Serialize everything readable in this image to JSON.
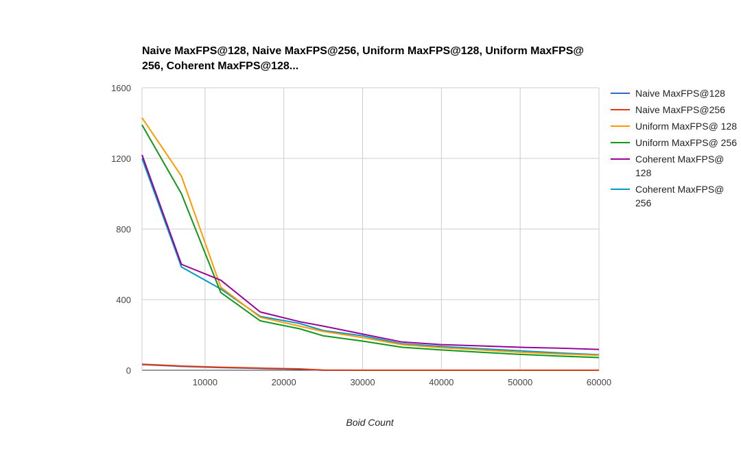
{
  "chart_data": {
    "type": "line",
    "title": "Naive MaxFPS@128, Naive MaxFPS@256, Uniform MaxFPS@128, Uniform MaxFPS@ 256, Coherent MaxFPS@128...",
    "xlabel": "Boid Count",
    "ylabel": "",
    "xlim": [
      2000,
      60000
    ],
    "ylim": [
      0,
      1600
    ],
    "x_ticks": [
      10000,
      20000,
      30000,
      40000,
      50000,
      60000
    ],
    "y_ticks": [
      0,
      400,
      800,
      1200,
      1600
    ],
    "x_tick_labels": [
      "10000",
      "20000",
      "30000",
      "40000",
      "50000",
      "60000"
    ],
    "y_tick_labels": [
      "0",
      "400",
      "800",
      "1200",
      "1600"
    ],
    "grid": true,
    "legend_position": "right",
    "x": [
      2000,
      7000,
      12000,
      17000,
      22000,
      25000,
      30000,
      35000,
      40000,
      45000,
      50000,
      55000,
      60000
    ],
    "series": [
      {
        "name": "Naive MaxFPS@128",
        "color": "#3366cc",
        "values": [
          32,
          22,
          15,
          10,
          6,
          0,
          0,
          0,
          0,
          0,
          0,
          0,
          0
        ]
      },
      {
        "name": "Naive MaxFPS@256",
        "color": "#dc3912",
        "values": [
          34,
          24,
          17,
          12,
          8,
          1,
          0,
          0,
          0,
          0,
          0,
          0,
          0
        ]
      },
      {
        "name": "Uniform MaxFPS@ 128",
        "color": "#ff9900",
        "values": [
          1430,
          1100,
          470,
          300,
          250,
          220,
          185,
          145,
          128,
          115,
          102,
          92,
          85
        ]
      },
      {
        "name": "Uniform MaxFPS@ 256",
        "color": "#109618",
        "values": [
          1390,
          1000,
          440,
          280,
          235,
          195,
          165,
          130,
          115,
          102,
          90,
          80,
          72
        ]
      },
      {
        "name": "Coherent MaxFPS@ 128",
        "color": "#990099",
        "values": [
          1220,
          600,
          510,
          330,
          275,
          250,
          205,
          160,
          145,
          138,
          130,
          125,
          118
        ]
      },
      {
        "name": "Coherent MaxFPS@ 256",
        "color": "#0099c6",
        "values": [
          1200,
          585,
          460,
          305,
          265,
          225,
          195,
          150,
          135,
          122,
          110,
          98,
          88
        ]
      }
    ]
  }
}
